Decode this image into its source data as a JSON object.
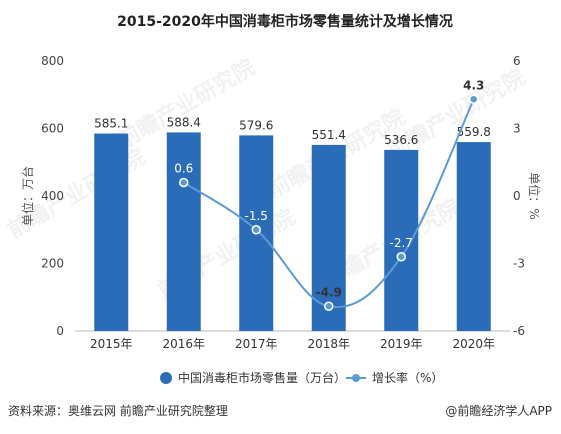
{
  "chart_data": {
    "type": "bar",
    "title": "2015-2020年中国消毒柜市场零售量统计及增长情况",
    "categories": [
      "2015年",
      "2016年",
      "2017年",
      "2018年",
      "2019年",
      "2020年"
    ],
    "series": [
      {
        "name": "中国消毒柜市场零售量（万台）",
        "type": "bar",
        "axis": "left",
        "values": [
          585.1,
          588.4,
          579.6,
          551.4,
          536.6,
          559.8
        ],
        "labels": [
          "585.1",
          "588.4",
          "579.6",
          "551.4",
          "536.6",
          "559.8"
        ],
        "color": "#2b6cb8"
      },
      {
        "name": "增长率（%）",
        "type": "line",
        "axis": "right",
        "values": [
          null,
          0.6,
          -1.5,
          -4.9,
          -2.7,
          4.3
        ],
        "labels": [
          "",
          "0.6",
          "-1.5",
          "-4.9",
          "-2.7",
          "4.3"
        ],
        "color": "#5b9bd5"
      }
    ],
    "ylabel": "单位：万台",
    "y2label": "单位：%",
    "ylim": [
      0,
      800
    ],
    "yticks": [
      "0",
      "200",
      "400",
      "600",
      "800"
    ],
    "y2lim": [
      -6,
      6
    ],
    "y2ticks": [
      "-6",
      "-3",
      "0",
      "3",
      "6"
    ],
    "legend_position": "bottom",
    "grid": false
  },
  "source": "资料来源：奥维云网 前瞻产业研究院整理",
  "watermark": "前瞻产业研究院",
  "brand": "@前瞻经济学人APP"
}
